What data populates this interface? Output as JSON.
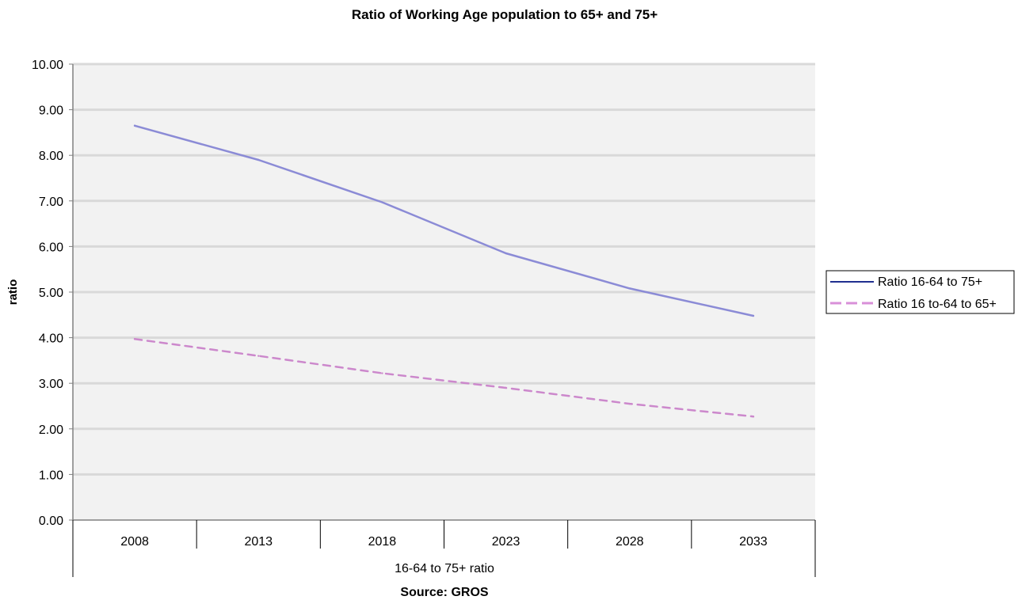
{
  "chart_data": {
    "type": "line",
    "title": "Ratio of Working Age population to 65+ and 75+",
    "ylabel": "ratio",
    "xlabel": "16-64 to 75+ ratio",
    "source": "Source: GROS",
    "ylim": [
      0,
      10
    ],
    "y_ticks": [
      "0.00",
      "1.00",
      "2.00",
      "3.00",
      "4.00",
      "5.00",
      "6.00",
      "7.00",
      "8.00",
      "9.00",
      "10.00"
    ],
    "categories": [
      "2008",
      "2013",
      "2018",
      "2023",
      "2028",
      "2033"
    ],
    "grid": true,
    "legend_position": "right",
    "series": [
      {
        "name": "Ratio 16-64 to 75+",
        "values": [
          8.65,
          7.9,
          6.97,
          5.85,
          5.08,
          4.48
        ],
        "color": "#8b8bd6",
        "legend_color": "#1f2f8f",
        "dashed": false
      },
      {
        "name": "Ratio 16 to-64 to 65+",
        "values": [
          3.97,
          3.6,
          3.22,
          2.9,
          2.55,
          2.27
        ],
        "color": "#cc88cc",
        "legend_color": "#d88fd8",
        "dashed": true
      }
    ],
    "colors": {
      "plot_background": "#f2f2f2",
      "gridline": "#d9d9d9",
      "axis": "#808080"
    }
  }
}
